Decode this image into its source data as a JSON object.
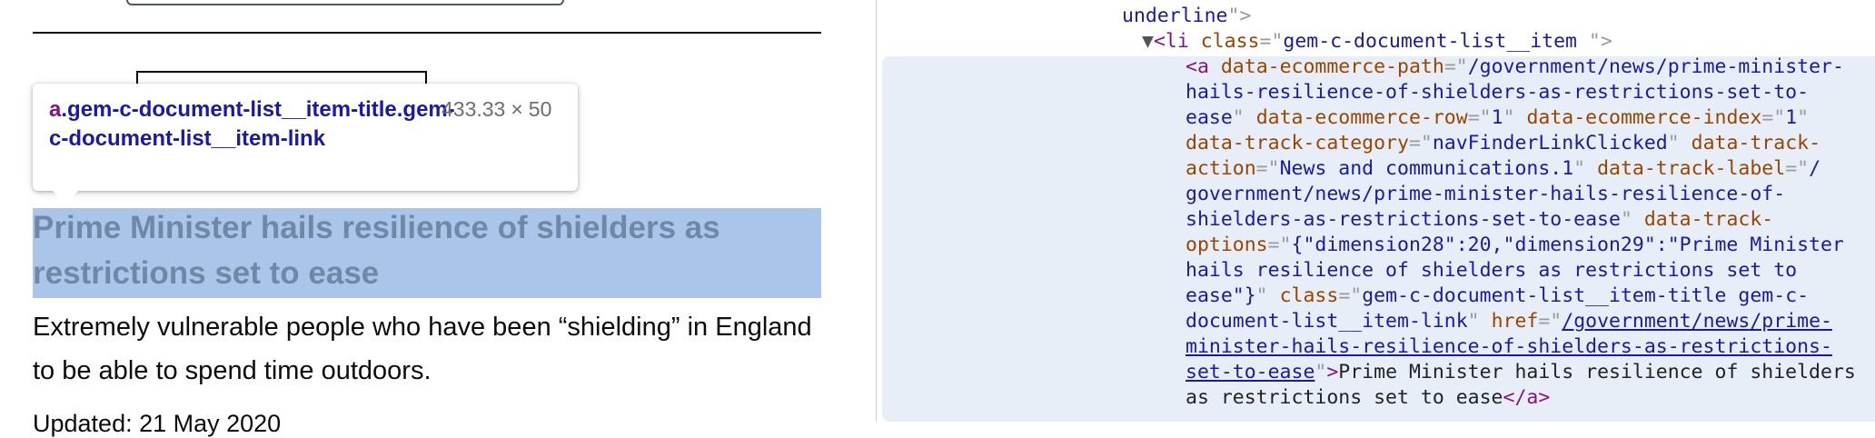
{
  "left": {
    "tooltip": {
      "tag": "a",
      "selector_rest": ".gem-c-document-list__item-title.gem-c-document-list__item-link",
      "width": "433.33",
      "times": "×",
      "height": "50"
    },
    "headline": "Prime Minister hails resilience of shielders as restrictions set to ease",
    "summary": "Extremely vulnerable people who have been “shielding” in England to be able to spend time outdoors.",
    "updated": "Updated: 21 May 2020"
  },
  "devtools": {
    "l1": {
      "val": "underline",
      "end": "\">"
    },
    "l2": {
      "triangle": "▼",
      "open": "<",
      "tag": "li",
      "attr": "class",
      "eq": "=\"",
      "val": "gem-c-document-list__item ",
      "end": "\">"
    },
    "anchor": {
      "open": "<",
      "tag": "a",
      "a1_name": "data-ecommerce-path",
      "a1_v1": "/government/news/prime-minister-",
      "a1_v2": "hails-resilience-of-shielders-as-restrictions-set-to-",
      "a1_v3": "ease",
      "a2_name": "data-ecommerce-row",
      "a2_val": "1",
      "a3_name": "data-ecommerce-index",
      "a3_val": "1",
      "a4_name": "data-track-category",
      "a4_val": "navFinderLinkClicked",
      "a5_name1": "data-track-",
      "a5_name2": "action",
      "a5_val": "News and communications.1",
      "a6_name": "data-track-label",
      "a6_v0": "/",
      "a6_v1": "government/news/prime-minister-hails-resilience-of-",
      "a6_v2": "shielders-as-restrictions-set-to-ease",
      "a7_name1": "data-track-",
      "a7_name2": "options",
      "a7_v1": "{\"dimension28\":20,\"dimension29\":\"Prime Minister",
      "a7_v2": "hails resilience of shielders as restrictions set to",
      "a7_v3": "ease\"}",
      "a8_name": "class",
      "a8_v1": "gem-c-document-list__item-title gem-c-",
      "a8_v2": "document-list__item-link",
      "a9_name": "href",
      "a9_v1": "/government/news/prime-",
      "a9_v2": "minister-hails-resilience-of-shielders-as-restrictions-",
      "a9_v3": "set-to-ease",
      "text1": "Prime Minister hails resilience of shielders",
      "text2": "as restrictions set to ease",
      "close": "</a>"
    }
  }
}
